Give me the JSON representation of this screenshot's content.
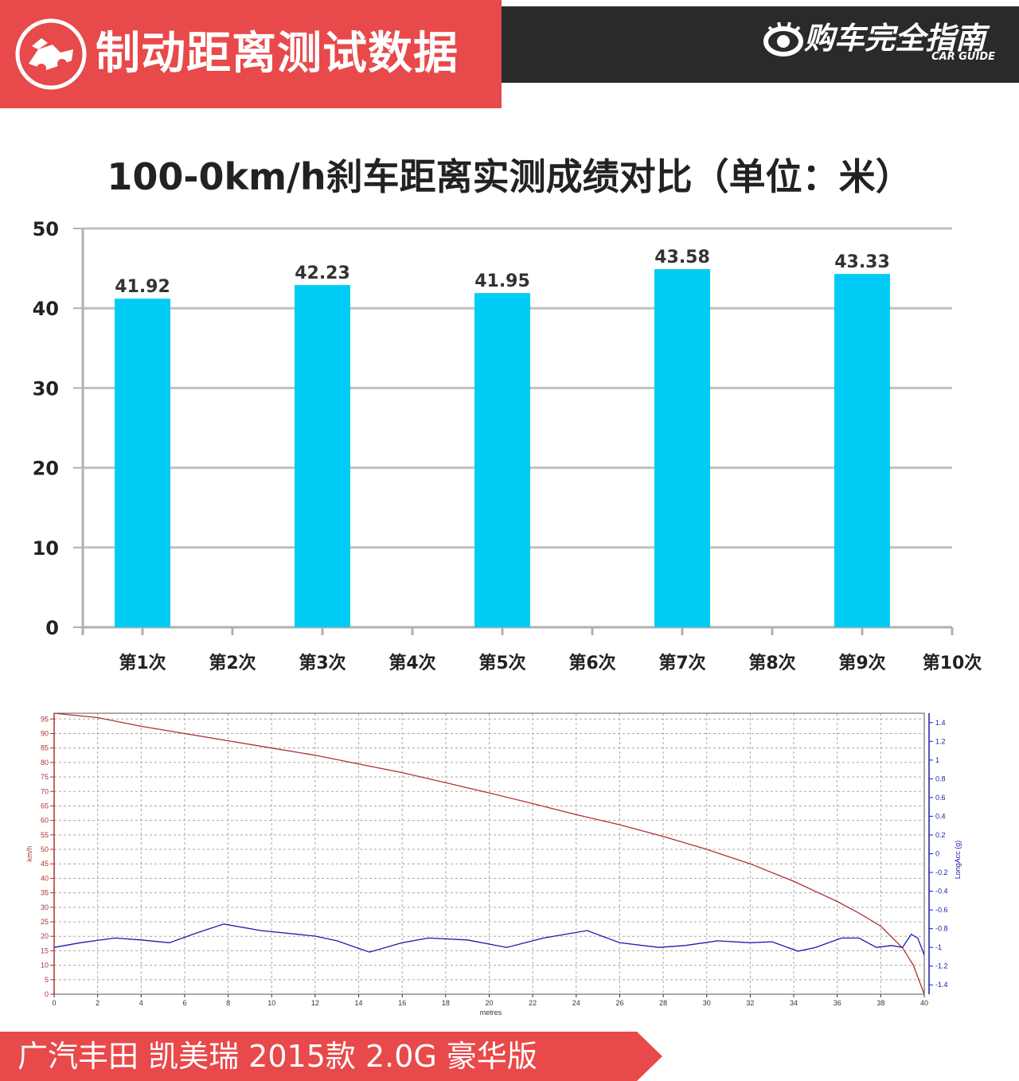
{
  "header": {
    "title": "制动距离测试数据",
    "brand_cn": "购车完全指南",
    "brand_en": "CAR GUIDE"
  },
  "footer": {
    "text": "广汽丰田 凯美瑞 2015款 2.0G 豪华版"
  },
  "colors": {
    "accent_red": "#e8494a",
    "header_dark": "#2a2a2a",
    "bar": "#00ccf5",
    "speed_line": "#b03030",
    "accel_line": "#1a1aa8"
  },
  "chart_data": [
    {
      "type": "bar",
      "title": "100-0km/h刹车距离实测成绩对比（单位：米）",
      "categories": [
        "第1次",
        "第2次",
        "第3次",
        "第4次",
        "第5次",
        "第6次",
        "第7次",
        "第8次",
        "第9次",
        "第10次"
      ],
      "values": [
        41.92,
        null,
        42.23,
        null,
        41.95,
        null,
        43.58,
        null,
        43.33,
        null
      ],
      "bar_heights_est": [
        41.2,
        null,
        42.9,
        null,
        41.9,
        null,
        44.9,
        null,
        44.3,
        null
      ],
      "ylim": [
        0,
        50
      ],
      "yticks": [
        0,
        10,
        20,
        30,
        40,
        50
      ],
      "grid": true,
      "bar_color": "#00ccf5"
    },
    {
      "type": "line",
      "xlabel": "metres",
      "ylabel": "km/h",
      "y2label": "LongAcc (g)",
      "xlim": [
        0,
        40
      ],
      "xticks": [
        0,
        2,
        4,
        6,
        8,
        10,
        12,
        14,
        16,
        18,
        20,
        22,
        24,
        26,
        28,
        30,
        32,
        34,
        36,
        38,
        40
      ],
      "ylim": [
        0,
        97
      ],
      "yticks": [
        0,
        5,
        10,
        15,
        20,
        25,
        30,
        35,
        40,
        45,
        50,
        55,
        60,
        65,
        70,
        75,
        80,
        85,
        90,
        95
      ],
      "y2lim": [
        -1.5,
        1.5
      ],
      "y2ticks": [
        "1.4",
        "1.2",
        "1",
        "0.8",
        "0.6",
        "0.4",
        "0.2",
        "0",
        "-0.2",
        "-0.4",
        "-0.6",
        "-0.8",
        "-1",
        "-1.2",
        "-1.4"
      ],
      "grid": true,
      "series": [
        {
          "axis": "left",
          "x": [
            0,
            2,
            4,
            6,
            8,
            10,
            12,
            14,
            16,
            18,
            20,
            22,
            24,
            26,
            28,
            30,
            32,
            34,
            36,
            37,
            38,
            39,
            39.5,
            40
          ],
          "y": [
            97,
            95.5,
            92.5,
            90,
            87.5,
            85,
            82.5,
            79.5,
            76.5,
            73,
            69.5,
            65.8,
            62,
            58.5,
            54.5,
            50,
            45,
            39,
            32,
            28,
            23.5,
            16,
            10,
            0
          ]
        },
        {
          "axis": "right",
          "x": [
            0,
            1.2,
            2.8,
            4,
            5.3,
            6.5,
            7.8,
            9.5,
            12,
            13,
            14.5,
            16,
            17.2,
            19,
            20.8,
            22.5,
            24.5,
            26,
            27.8,
            29,
            30.5,
            32,
            33,
            34.2,
            35,
            36.2,
            37,
            37.8,
            38.5,
            39,
            39.4,
            39.7,
            40
          ],
          "y": [
            -1.0,
            -0.95,
            -0.9,
            -0.92,
            -0.95,
            -0.85,
            -0.75,
            -0.82,
            -0.88,
            -0.93,
            -1.05,
            -0.95,
            -0.9,
            -0.92,
            -1.0,
            -0.9,
            -0.82,
            -0.95,
            -1.0,
            -0.98,
            -0.93,
            -0.95,
            -0.94,
            -1.04,
            -1.0,
            -0.9,
            -0.9,
            -1.0,
            -0.98,
            -1.0,
            -0.86,
            -0.9,
            -1.08
          ]
        }
      ]
    }
  ]
}
